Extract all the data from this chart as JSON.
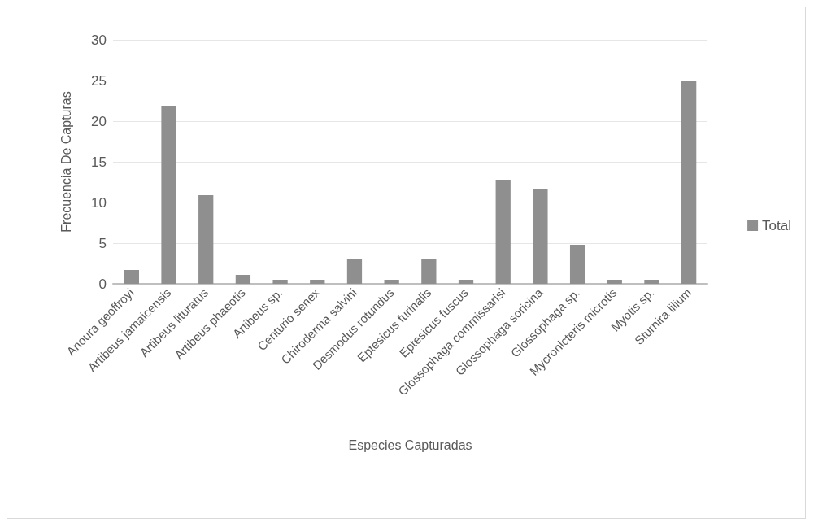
{
  "chart_data": {
    "type": "bar",
    "xlabel": "Especies Capturadas",
    "ylabel": "Frecuencia De Capturas",
    "categories": [
      "Anoura geoffroyi",
      "Artibeus jamaicensis",
      "Artibeus lituratus",
      "Artibeus phaeotis",
      "Artibeus sp.",
      "Centurio senex",
      "Chiroderma salvini",
      "Desmodus rotundus",
      "Eptesicus furinalis",
      "Eptesicus fuscus",
      "Glossophaga commissarisi",
      "Glossophaga soricina",
      "Glossophaga sp.",
      "Mycronicteris microtis",
      "Myotis sp.",
      "Sturnira lilium"
    ],
    "series": [
      {
        "name": "Total",
        "color": "#8f8f8f",
        "values": [
          1.7,
          21.9,
          10.9,
          1.1,
          0.5,
          0.5,
          3,
          0.5,
          3,
          0.5,
          12.8,
          11.6,
          4.8,
          0.5,
          0.5,
          25
        ]
      }
    ],
    "ylim": [
      0,
      30
    ],
    "yticks": [
      0,
      5,
      10,
      15,
      20,
      25,
      30
    ],
    "grid": "y",
    "legend": "right"
  }
}
